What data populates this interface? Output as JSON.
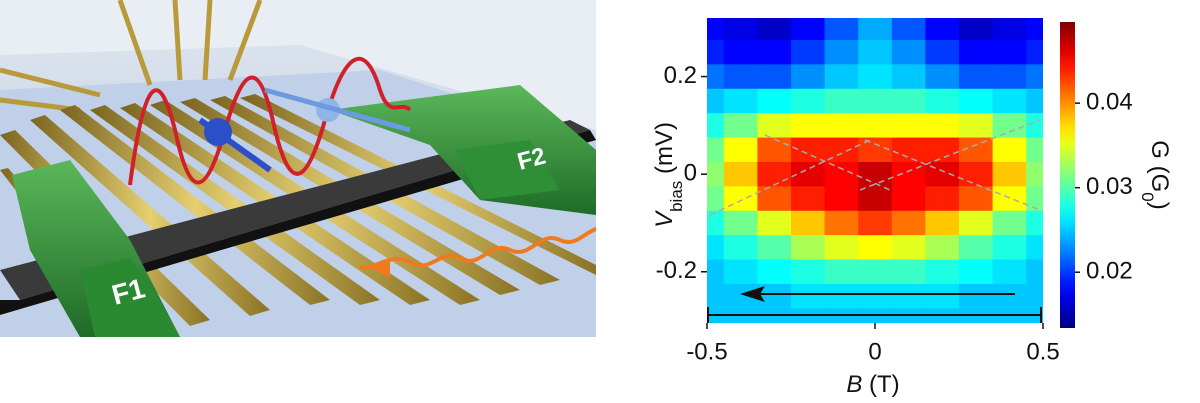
{
  "illustration": {
    "labels": [
      "F1",
      "F2"
    ]
  },
  "chart_data": {
    "type": "heatmap",
    "x": [
      -0.5,
      -0.4,
      -0.3,
      -0.2,
      -0.1,
      0,
      0.1,
      0.2,
      0.3,
      0.4,
      0.5
    ],
    "y": [
      0.3,
      0.25,
      0.2,
      0.15,
      0.1,
      0.05,
      0,
      -0.05,
      -0.1,
      -0.15,
      -0.2,
      -0.25,
      -0.3
    ],
    "z": [
      [
        0.018,
        0.017,
        0.016,
        0.018,
        0.021,
        0.024,
        0.021,
        0.018,
        0.016,
        0.017,
        0.018
      ],
      [
        0.019,
        0.018,
        0.018,
        0.02,
        0.023,
        0.025,
        0.023,
        0.02,
        0.018,
        0.018,
        0.019
      ],
      [
        0.022,
        0.021,
        0.021,
        0.023,
        0.025,
        0.026,
        0.025,
        0.023,
        0.021,
        0.021,
        0.022
      ],
      [
        0.025,
        0.026,
        0.027,
        0.028,
        0.029,
        0.029,
        0.029,
        0.028,
        0.027,
        0.026,
        0.025
      ],
      [
        0.028,
        0.031,
        0.035,
        0.036,
        0.036,
        0.036,
        0.036,
        0.036,
        0.035,
        0.031,
        0.028
      ],
      [
        0.031,
        0.036,
        0.042,
        0.044,
        0.044,
        0.043,
        0.044,
        0.044,
        0.042,
        0.036,
        0.031
      ],
      [
        0.032,
        0.038,
        0.044,
        0.046,
        0.045,
        0.047,
        0.045,
        0.046,
        0.044,
        0.038,
        0.032
      ],
      [
        0.031,
        0.036,
        0.042,
        0.044,
        0.045,
        0.047,
        0.045,
        0.044,
        0.042,
        0.036,
        0.031
      ],
      [
        0.028,
        0.031,
        0.035,
        0.038,
        0.041,
        0.043,
        0.041,
        0.038,
        0.035,
        0.031,
        0.028
      ],
      [
        0.026,
        0.028,
        0.03,
        0.033,
        0.035,
        0.036,
        0.035,
        0.033,
        0.03,
        0.028,
        0.026
      ],
      [
        0.025,
        0.026,
        0.027,
        0.028,
        0.029,
        0.029,
        0.029,
        0.028,
        0.027,
        0.026,
        0.025
      ],
      [
        0.025,
        0.025,
        0.025,
        0.026,
        0.026,
        0.026,
        0.026,
        0.026,
        0.025,
        0.025,
        0.025
      ],
      [
        0.025,
        0.025,
        0.025,
        0.025,
        0.025,
        0.025,
        0.025,
        0.025,
        0.025,
        0.025,
        0.025
      ]
    ],
    "xlim": [
      -0.5,
      0.5
    ],
    "ylim": [
      -0.305,
      0.32
    ],
    "xticks": [
      -0.5,
      0,
      0.5
    ],
    "yticks": [
      -0.2,
      0,
      0.2
    ],
    "clim": [
      0.0134,
      0.0496
    ],
    "cticks": [
      0.02,
      0.03,
      0.04
    ],
    "colormap": "jet",
    "xlabel": {
      "symbol": "B",
      "unit": " (T)"
    },
    "ylabel": {
      "symbol": "V",
      "subscript": "bias",
      "unit": " (mV)"
    },
    "clabel": {
      "text": "G (G",
      "subscript": "0",
      "end": ")"
    }
  }
}
